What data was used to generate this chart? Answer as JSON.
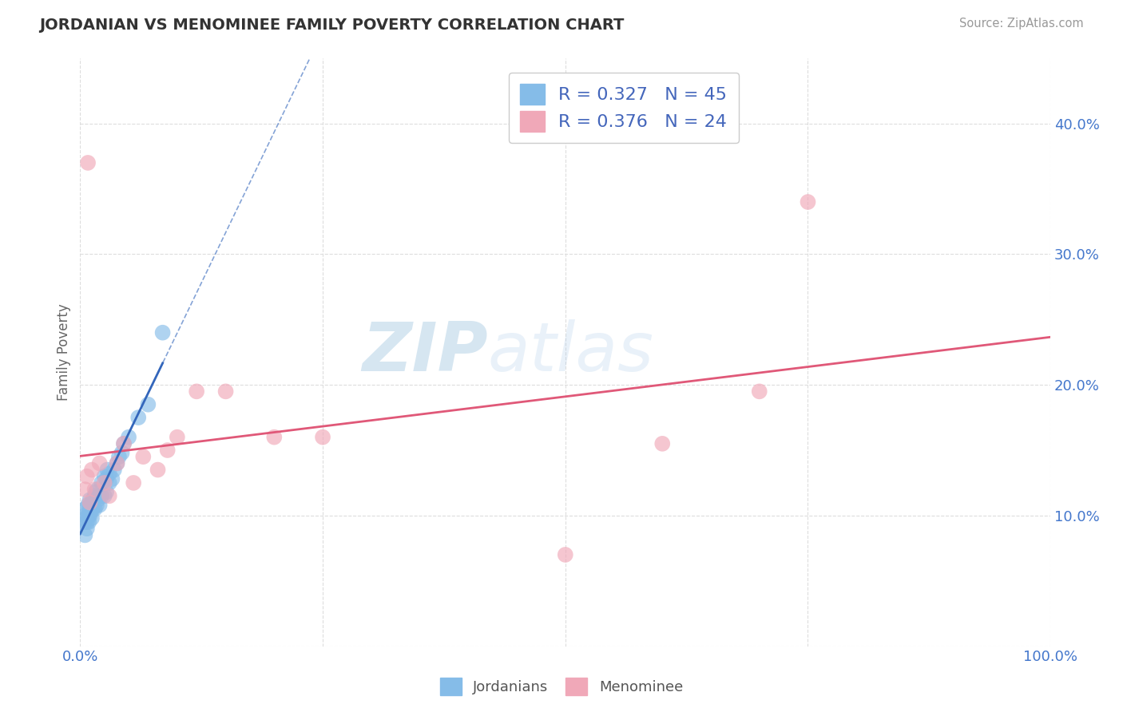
{
  "title": "JORDANIAN VS MENOMINEE FAMILY POVERTY CORRELATION CHART",
  "source": "Source: ZipAtlas.com",
  "ylabel": "Family Poverty",
  "xlim": [
    0.0,
    1.0
  ],
  "ylim": [
    0.0,
    0.45
  ],
  "xticks": [
    0.0,
    0.25,
    0.5,
    0.75,
    1.0
  ],
  "xticklabels": [
    "0.0%",
    "",
    "",
    "",
    "100.0%"
  ],
  "ytick_positions": [
    0.0,
    0.1,
    0.2,
    0.3,
    0.4
  ],
  "yticklabels_right": [
    "",
    "10.0%",
    "20.0%",
    "30.0%",
    "40.0%"
  ],
  "background_color": "#ffffff",
  "watermark_zip": "ZIP",
  "watermark_atlas": "atlas",
  "jordanians_color": "#85bce8",
  "menominee_color": "#f0a8b8",
  "trend_jordan_color": "#3366bb",
  "trend_menominee_color": "#e05878",
  "R_jordan": 0.327,
  "N_jordan": 45,
  "R_menominee": 0.376,
  "N_menominee": 24,
  "jordanians_x": [
    0.005,
    0.005,
    0.005,
    0.005,
    0.007,
    0.007,
    0.008,
    0.008,
    0.009,
    0.009,
    0.01,
    0.01,
    0.01,
    0.01,
    0.012,
    0.012,
    0.013,
    0.013,
    0.015,
    0.015,
    0.016,
    0.017,
    0.018,
    0.018,
    0.02,
    0.02,
    0.022,
    0.022,
    0.025,
    0.025,
    0.027,
    0.027,
    0.028,
    0.03,
    0.03,
    0.033,
    0.035,
    0.038,
    0.04,
    0.043,
    0.045,
    0.05,
    0.06,
    0.07,
    0.085
  ],
  "jordanians_y": [
    0.085,
    0.095,
    0.1,
    0.105,
    0.09,
    0.095,
    0.1,
    0.108,
    0.095,
    0.1,
    0.1,
    0.105,
    0.108,
    0.112,
    0.098,
    0.105,
    0.105,
    0.112,
    0.105,
    0.115,
    0.118,
    0.108,
    0.112,
    0.12,
    0.108,
    0.115,
    0.115,
    0.125,
    0.115,
    0.13,
    0.118,
    0.128,
    0.135,
    0.125,
    0.132,
    0.128,
    0.135,
    0.14,
    0.145,
    0.148,
    0.155,
    0.16,
    0.175,
    0.185,
    0.24
  ],
  "menominee_x": [
    0.005,
    0.007,
    0.008,
    0.01,
    0.012,
    0.015,
    0.02,
    0.025,
    0.03,
    0.038,
    0.045,
    0.055,
    0.065,
    0.08,
    0.09,
    0.1,
    0.12,
    0.15,
    0.2,
    0.25,
    0.5,
    0.6,
    0.7,
    0.75
  ],
  "menominee_y": [
    0.12,
    0.13,
    0.37,
    0.11,
    0.135,
    0.12,
    0.14,
    0.125,
    0.115,
    0.14,
    0.155,
    0.125,
    0.145,
    0.135,
    0.15,
    0.16,
    0.195,
    0.195,
    0.16,
    0.16,
    0.07,
    0.155,
    0.195,
    0.34
  ],
  "grid_color": "#dddddd",
  "legend_color": "#4466bb",
  "tick_color": "#4477cc"
}
